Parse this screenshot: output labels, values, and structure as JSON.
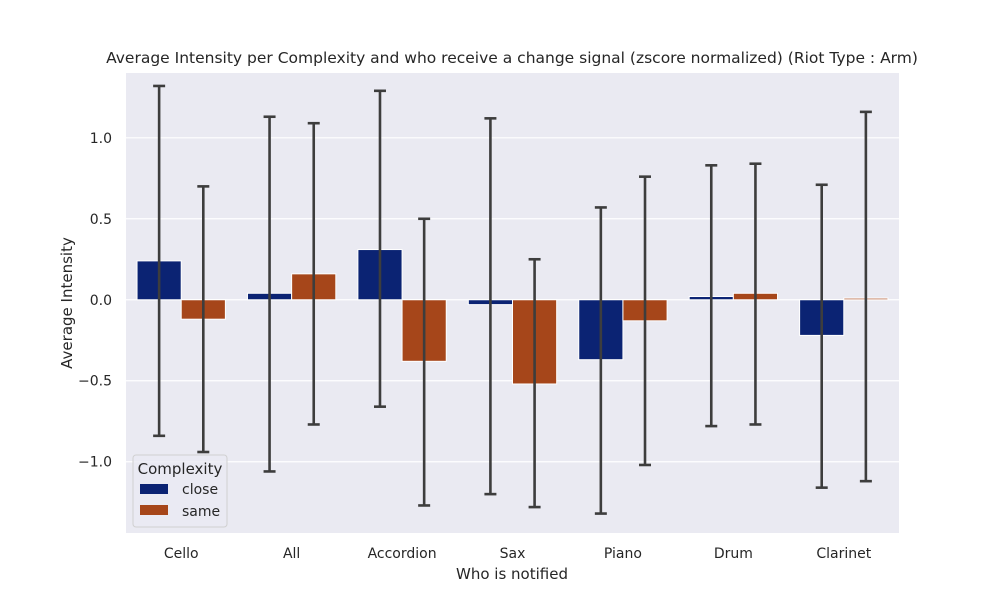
{
  "chart_data": {
    "type": "bar",
    "title": "Average Intensity per Complexity and who receive a change signal (zscore normalized) (Riot Type : Arm)",
    "xlabel": "Who is notified",
    "ylabel": "Average Intensity",
    "categories": [
      "Cello",
      "All",
      "Accordion",
      "Sax",
      "Piano",
      "Drum",
      "Clarinet"
    ],
    "ylim": [
      -1.44,
      1.4
    ],
    "yticks": [
      -1.0,
      -0.5,
      0.0,
      0.5,
      1.0
    ],
    "ytick_labels": [
      "−1.0",
      "−0.5",
      "0.0",
      "0.5",
      "1.0"
    ],
    "grid": true,
    "background": "#eaeaf2",
    "legend": {
      "title": "Complexity",
      "placement": "lower-left"
    },
    "series": [
      {
        "name": "close",
        "color": "#0b2373",
        "values": [
          0.24,
          0.04,
          0.31,
          -0.03,
          -0.37,
          0.02,
          -0.22
        ],
        "err_low": [
          -0.84,
          -1.06,
          -0.66,
          -1.2,
          -1.32,
          -0.78,
          -1.16
        ],
        "err_high": [
          1.32,
          1.13,
          1.29,
          1.12,
          0.57,
          0.83,
          0.71
        ]
      },
      {
        "name": "same",
        "color": "#a6461a",
        "values": [
          -0.12,
          0.16,
          -0.38,
          -0.52,
          -0.13,
          0.04,
          0.01
        ],
        "err_low": [
          -0.94,
          -0.77,
          -1.27,
          -1.28,
          -1.02,
          -0.77,
          -1.12
        ],
        "err_high": [
          0.7,
          1.09,
          0.5,
          0.25,
          0.76,
          0.84,
          1.16
        ]
      }
    ]
  }
}
